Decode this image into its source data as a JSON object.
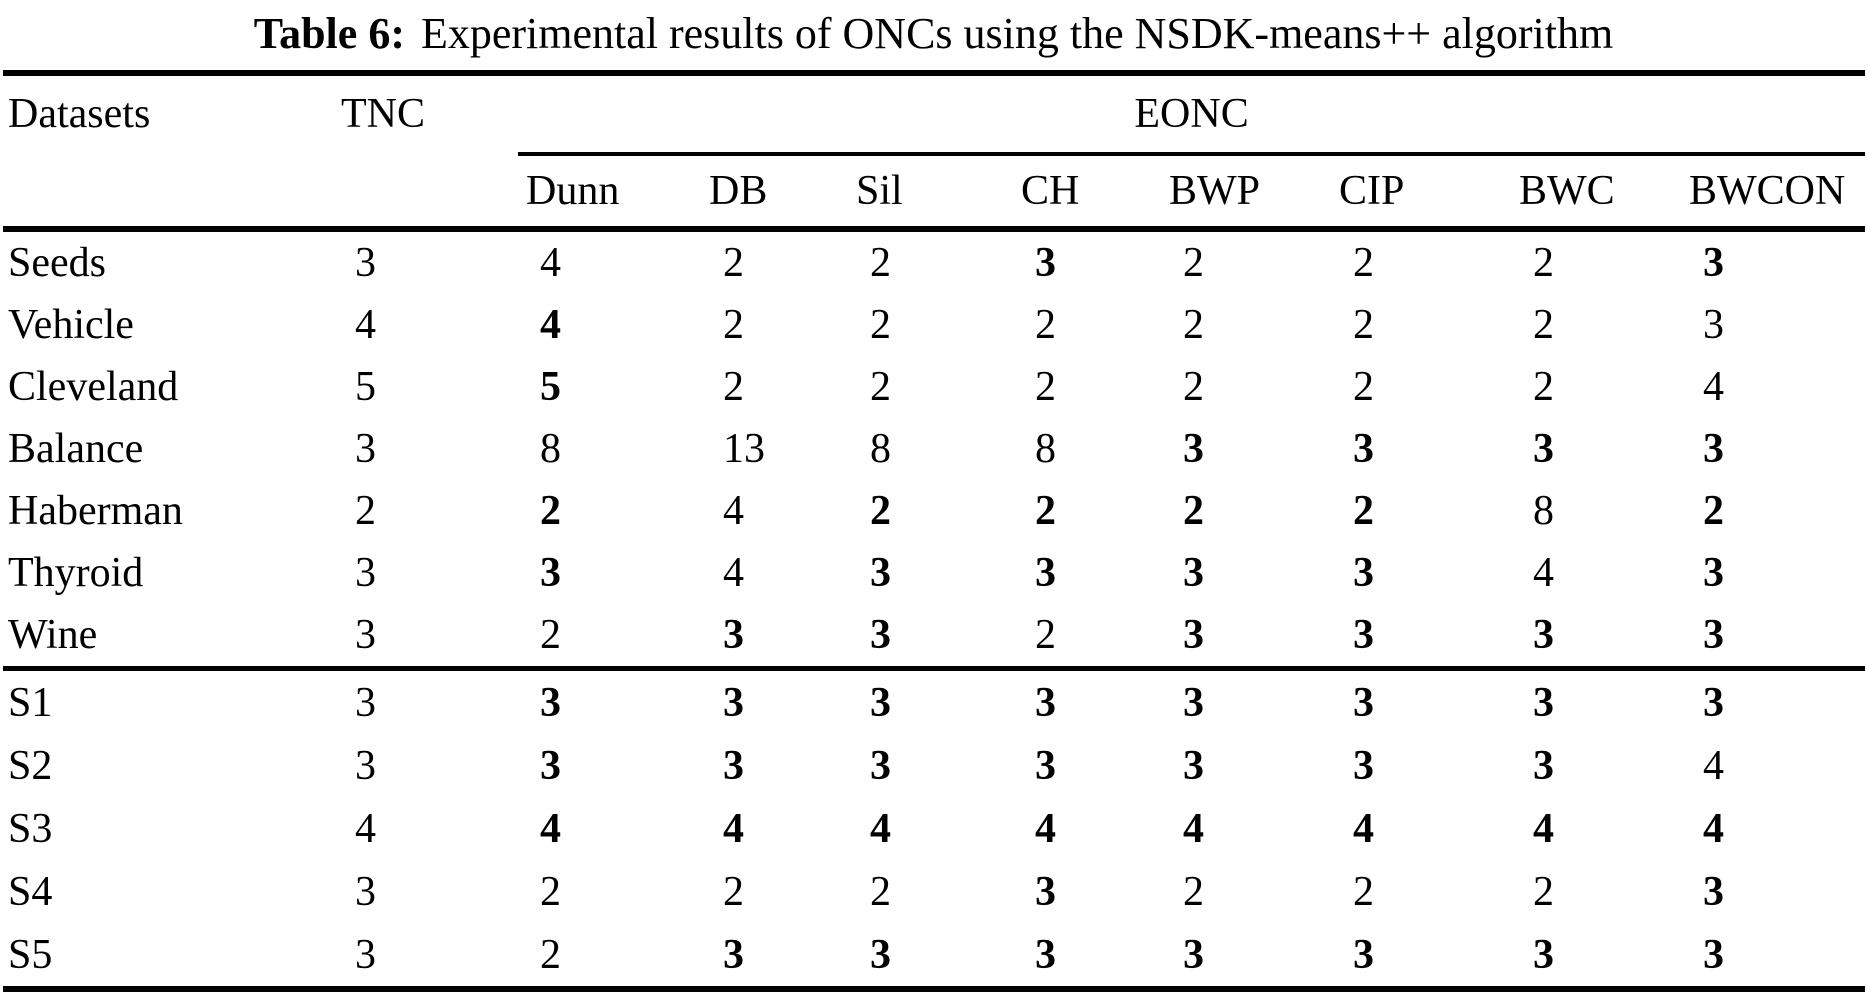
{
  "title": {
    "label": "Table 6:",
    "text": "Experimental results of ONCs using the NSDK-means++ algorithm"
  },
  "table": {
    "header": {
      "datasets": "Datasets",
      "tnc": "TNC",
      "eonc": "EONC"
    },
    "eonc_columns": [
      "Dunn",
      "DB",
      "Sil",
      "CH",
      "BWP",
      "CIP",
      "BWC",
      "BWCON"
    ],
    "rows": [
      {
        "dataset": "Seeds",
        "tnc": "3",
        "values": [
          "4",
          "2",
          "2",
          "3",
          "2",
          "2",
          "2",
          "3"
        ],
        "bold": [
          false,
          false,
          false,
          true,
          false,
          false,
          false,
          true
        ],
        "section": "real"
      },
      {
        "dataset": "Vehicle",
        "tnc": "4",
        "values": [
          "4",
          "2",
          "2",
          "2",
          "2",
          "2",
          "2",
          "3"
        ],
        "bold": [
          true,
          false,
          false,
          false,
          false,
          false,
          false,
          false
        ],
        "section": "real"
      },
      {
        "dataset": "Cleveland",
        "tnc": "5",
        "values": [
          "5",
          "2",
          "2",
          "2",
          "2",
          "2",
          "2",
          "4"
        ],
        "bold": [
          true,
          false,
          false,
          false,
          false,
          false,
          false,
          false
        ],
        "section": "real"
      },
      {
        "dataset": "Balance",
        "tnc": "3",
        "values": [
          "8",
          "13",
          "8",
          "8",
          "3",
          "3",
          "3",
          "3"
        ],
        "bold": [
          false,
          false,
          false,
          false,
          true,
          true,
          true,
          true
        ],
        "section": "real"
      },
      {
        "dataset": "Haberman",
        "tnc": "2",
        "values": [
          "2",
          "4",
          "2",
          "2",
          "2",
          "2",
          "8",
          "2"
        ],
        "bold": [
          true,
          false,
          true,
          true,
          true,
          true,
          false,
          true
        ],
        "section": "real"
      },
      {
        "dataset": "Thyroid",
        "tnc": "3",
        "values": [
          "3",
          "4",
          "3",
          "3",
          "3",
          "3",
          "4",
          "3"
        ],
        "bold": [
          true,
          false,
          true,
          true,
          true,
          true,
          false,
          true
        ],
        "section": "real"
      },
      {
        "dataset": "Wine",
        "tnc": "3",
        "values": [
          "2",
          "3",
          "3",
          "2",
          "3",
          "3",
          "3",
          "3"
        ],
        "bold": [
          false,
          true,
          true,
          false,
          true,
          true,
          true,
          true
        ],
        "section": "real"
      },
      {
        "dataset": "S1",
        "tnc": "3",
        "values": [
          "3",
          "3",
          "3",
          "3",
          "3",
          "3",
          "3",
          "3"
        ],
        "bold": [
          true,
          true,
          true,
          true,
          true,
          true,
          true,
          true
        ],
        "section": "synthetic"
      },
      {
        "dataset": "S2",
        "tnc": "3",
        "values": [
          "3",
          "3",
          "3",
          "3",
          "3",
          "3",
          "3",
          "4"
        ],
        "bold": [
          true,
          true,
          true,
          true,
          true,
          true,
          true,
          false
        ],
        "section": "synthetic"
      },
      {
        "dataset": "S3",
        "tnc": "4",
        "values": [
          "4",
          "4",
          "4",
          "4",
          "4",
          "4",
          "4",
          "4"
        ],
        "bold": [
          true,
          true,
          true,
          true,
          true,
          true,
          true,
          true
        ],
        "section": "synthetic"
      },
      {
        "dataset": "S4",
        "tnc": "3",
        "values": [
          "2",
          "2",
          "2",
          "3",
          "2",
          "2",
          "2",
          "3"
        ],
        "bold": [
          false,
          false,
          false,
          true,
          false,
          false,
          false,
          true
        ],
        "section": "synthetic"
      },
      {
        "dataset": "S5",
        "tnc": "3",
        "values": [
          "2",
          "3",
          "3",
          "3",
          "3",
          "3",
          "3",
          "3"
        ],
        "bold": [
          false,
          true,
          true,
          true,
          true,
          true,
          true,
          true
        ],
        "section": "synthetic"
      }
    ]
  }
}
